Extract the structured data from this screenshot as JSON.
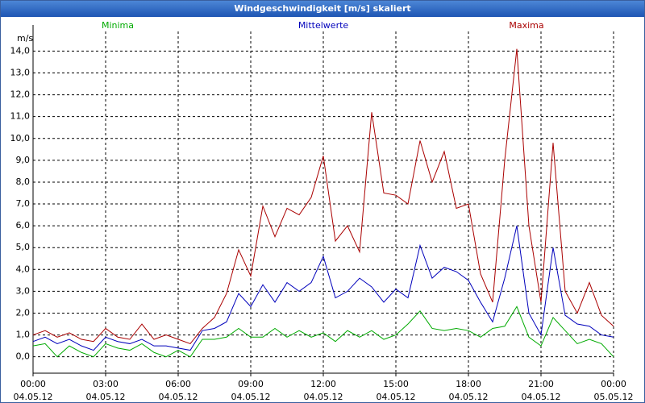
{
  "chart_data": {
    "type": "line",
    "title": "Windgeschwindigkeit [m/s] skaliert",
    "y_label": "m/s",
    "x": [
      0,
      0.5,
      1,
      1.5,
      2,
      2.5,
      3,
      3.5,
      4,
      4.5,
      5,
      5.5,
      6,
      6.5,
      7,
      7.5,
      8,
      8.5,
      9,
      9.5,
      10,
      10.5,
      11,
      11.5,
      12,
      12.5,
      13,
      13.5,
      14,
      14.5,
      15,
      15.5,
      16,
      16.5,
      17,
      17.5,
      18,
      18.5,
      19,
      19.5,
      20,
      20.5,
      21,
      21.5,
      22,
      22.5,
      23,
      23.5,
      24
    ],
    "series": [
      {
        "name": "Minima",
        "color": "#00aa00",
        "values": [
          0.5,
          0.6,
          0.0,
          0.5,
          0.2,
          0.0,
          0.6,
          0.4,
          0.3,
          0.6,
          0.2,
          0.0,
          0.3,
          0.0,
          0.8,
          0.8,
          0.9,
          1.3,
          0.9,
          0.9,
          1.3,
          0.9,
          1.2,
          0.9,
          1.1,
          0.7,
          1.2,
          0.9,
          1.2,
          0.8,
          1.0,
          1.5,
          2.1,
          1.3,
          1.2,
          1.3,
          1.2,
          0.9,
          1.3,
          1.4,
          2.3,
          0.9,
          0.5,
          1.8,
          1.2,
          0.6,
          0.8,
          0.6,
          0.0
        ]
      },
      {
        "name": "Mittelwerte",
        "color": "#0000bb",
        "values": [
          0.7,
          0.9,
          0.6,
          0.8,
          0.5,
          0.3,
          0.9,
          0.7,
          0.6,
          0.8,
          0.5,
          0.5,
          0.4,
          0.3,
          1.2,
          1.3,
          1.6,
          2.9,
          2.3,
          3.3,
          2.5,
          3.4,
          3.0,
          3.4,
          4.6,
          2.7,
          3.0,
          3.6,
          3.2,
          2.5,
          3.1,
          2.7,
          5.1,
          3.6,
          4.1,
          3.9,
          3.5,
          2.5,
          1.6,
          3.6,
          6.0,
          2.0,
          1.0,
          5.0,
          1.9,
          1.5,
          1.4,
          1.0,
          0.9
        ]
      },
      {
        "name": "Maxima",
        "color": "#aa0000",
        "values": [
          1.0,
          1.2,
          0.9,
          1.1,
          0.8,
          0.7,
          1.3,
          0.9,
          0.8,
          1.5,
          0.8,
          1.0,
          0.8,
          0.6,
          1.3,
          1.8,
          2.9,
          4.9,
          3.7,
          6.9,
          5.5,
          6.8,
          6.5,
          7.3,
          9.2,
          5.3,
          6.0,
          4.8,
          11.2,
          7.5,
          7.4,
          7.0,
          9.9,
          8.0,
          9.4,
          6.8,
          7.0,
          3.8,
          2.5,
          9.0,
          14.1,
          6.0,
          2.5,
          9.8,
          3.0,
          2.0,
          3.4,
          1.9,
          1.4
        ]
      }
    ],
    "xlim": [
      0,
      24
    ],
    "xticks": [
      {
        "value": 0,
        "label": "00:00\n04.05.12"
      },
      {
        "value": 3,
        "label": "03:00\n04.05.12"
      },
      {
        "value": 6,
        "label": "06:00\n04.05.12"
      },
      {
        "value": 9,
        "label": "09:00\n04.05.12"
      },
      {
        "value": 12,
        "label": "12:00\n04.05.12"
      },
      {
        "value": 15,
        "label": "15:00\n04.05.12"
      },
      {
        "value": 18,
        "label": "18:00\n04.05.12"
      },
      {
        "value": 21,
        "label": "21:00\n04.05.12"
      },
      {
        "value": 24,
        "label": "00:00\n05.05.12"
      }
    ],
    "ylim": [
      -0.75,
      14.9
    ],
    "yticks": [
      {
        "value": 0,
        "label": "0,0"
      },
      {
        "value": 1,
        "label": "1,0"
      },
      {
        "value": 2,
        "label": "2,0"
      },
      {
        "value": 3,
        "label": "3,0"
      },
      {
        "value": 4,
        "label": "4,0"
      },
      {
        "value": 5,
        "label": "5,0"
      },
      {
        "value": 6,
        "label": "6,0"
      },
      {
        "value": 7,
        "label": "7,0"
      },
      {
        "value": 8,
        "label": "8,0"
      },
      {
        "value": 9,
        "label": "9,0"
      },
      {
        "value": 10,
        "label": "10,0"
      },
      {
        "value": 11,
        "label": "11,0"
      },
      {
        "value": 12,
        "label": "12,0"
      },
      {
        "value": 13,
        "label": "13,0"
      },
      {
        "value": 14,
        "label": "14,0"
      }
    ],
    "grid": true
  }
}
